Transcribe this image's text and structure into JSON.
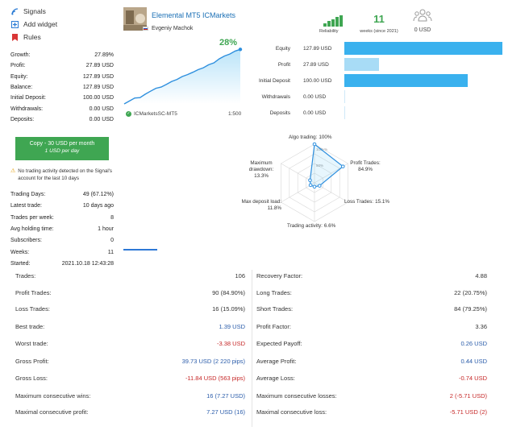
{
  "sidebar": {
    "nav": [
      {
        "label": "Signals",
        "icon": "signal-icon"
      },
      {
        "label": "Add widget",
        "icon": "add-widget-icon"
      },
      {
        "label": "Rules",
        "icon": "bookmark-icon"
      }
    ],
    "stats": [
      {
        "label": "Growth:",
        "value": "27.89%"
      },
      {
        "label": "Profit:",
        "value": "27.89 USD"
      },
      {
        "label": "Equity:",
        "value": "127.89 USD"
      },
      {
        "label": "Balance:",
        "value": "127.89 USD"
      },
      {
        "label": "Initial Deposit:",
        "value": "100.00 USD"
      },
      {
        "label": "Withdrawals:",
        "value": "0.00 USD"
      },
      {
        "label": "Deposits:",
        "value": "0.00 USD"
      }
    ],
    "subscribe": {
      "line1": "Copy - 30 USD per month",
      "line2": "1 USD per day"
    },
    "notice": "No trading activity detected on the Signal's account for the last 10 days",
    "trading": [
      {
        "label": "Trading Days:",
        "value": "49 (67.12%)"
      },
      {
        "label": "Latest trade:",
        "value": "10 days ago"
      },
      {
        "label": "Trades per week:",
        "value": "8"
      },
      {
        "label": "Avg holding time:",
        "value": "1 hour"
      },
      {
        "label": "Subscribers:",
        "value": "0"
      },
      {
        "label": "Weeks:",
        "value": "11"
      },
      {
        "label": "Started:",
        "value": "2021.10.18 12:43:28"
      }
    ]
  },
  "header": {
    "title": "Elemental MT5 ICMarkets",
    "author": "Evgeniy Machok",
    "reliability_label": "Reliability",
    "reliability_level": 5,
    "weeks_value": "11",
    "weeks_label": "weeks (since 2021)",
    "subscribers_usd": "0 USD"
  },
  "growth": {
    "value": "28%",
    "broker": "ICMarketsSC-MT5",
    "leverage": "1:500",
    "series": [
      0,
      1.5,
      3,
      3.2,
      5,
      6.5,
      8,
      8.6,
      10,
      11.5,
      12.5,
      14,
      15,
      16.2,
      17.5,
      18.5,
      20,
      21,
      23,
      24.5,
      25.5,
      27,
      27.89
    ]
  },
  "balance_bars": [
    {
      "label": "Equity",
      "value": "127.89 USD",
      "amount": 127.89,
      "color": "#3ab1ee"
    },
    {
      "label": "Profit",
      "value": "27.89 USD",
      "amount": 27.89,
      "color": "#a8dcf6"
    },
    {
      "label": "Initial Deposit",
      "value": "100.00 USD",
      "amount": 100.0,
      "color": "#3ab1ee"
    },
    {
      "label": "Withdrawals",
      "value": "0.00 USD",
      "amount": 0,
      "color": "#3ab1ee"
    },
    {
      "label": "Deposits",
      "value": "0.00 USD",
      "amount": 0,
      "color": "#3ab1ee"
    }
  ],
  "radar": {
    "axes": [
      {
        "label": "Algo trading:",
        "value": "100%",
        "fraction": 1.0
      },
      {
        "label": "Profit Trades:",
        "value": "84.9%",
        "fraction": 0.849
      },
      {
        "label": "Loss Trades:",
        "value": "15.1%",
        "fraction": 0.151
      },
      {
        "label": "Trading activity:",
        "value": "6.6%",
        "fraction": 0.066
      },
      {
        "label": "Max deposit load:",
        "value": "11.8%",
        "fraction": 0.118
      },
      {
        "label": "Maximum drawdown:",
        "value": "13.3%",
        "fraction": 0.133
      }
    ],
    "ring_labels": [
      "100+%",
      "50%"
    ]
  },
  "bottom_left": [
    {
      "label": "Trades:",
      "value": "106"
    },
    {
      "label": "Profit Trades:",
      "value": "90 (84.90%)"
    },
    {
      "label": "Loss Trades:",
      "value": "16 (15.09%)"
    },
    {
      "label": "Best trade:",
      "value": "1.39 USD",
      "tone": "blue"
    },
    {
      "label": "Worst trade:",
      "value": "-3.38 USD",
      "tone": "red"
    },
    {
      "label": "Gross Profit:",
      "value": "39.73 USD (2 220 pips)",
      "tone": "blue"
    },
    {
      "label": "Gross Loss:",
      "value": "-11.84 USD (563 pips)",
      "tone": "red"
    },
    {
      "label": "Maximum consecutive wins:",
      "value": "16 (7.27 USD)",
      "tone": "blue"
    },
    {
      "label": "Maximal consecutive profit:",
      "value": "7.27 USD (16)",
      "tone": "blue"
    }
  ],
  "bottom_right": [
    {
      "label": "Recovery Factor:",
      "value": "4.88"
    },
    {
      "label": "Long Trades:",
      "value": "22 (20.75%)"
    },
    {
      "label": "Short Trades:",
      "value": "84 (79.25%)"
    },
    {
      "label": "Profit Factor:",
      "value": "3.36"
    },
    {
      "label": "Expected Payoff:",
      "value": "0.26 USD",
      "tone": "blue"
    },
    {
      "label": "Average Profit:",
      "value": "0.44 USD",
      "tone": "blue"
    },
    {
      "label": "Average Loss:",
      "value": "-0.74 USD",
      "tone": "red"
    },
    {
      "label": "Maximum consecutive losses:",
      "value": "2 (-5.71 USD)",
      "tone": "red"
    },
    {
      "label": "Maximal consecutive loss:",
      "value": "-5.71 USD (2)",
      "tone": "red"
    }
  ],
  "colors": {
    "green": "#3fa652",
    "accent_blue": "#3ab1ee",
    "link": "#1a6fb5"
  }
}
